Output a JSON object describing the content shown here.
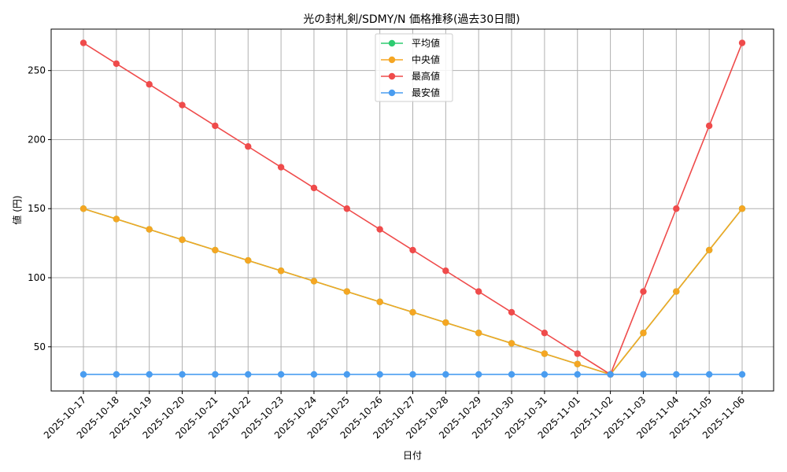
{
  "chart_data": {
    "type": "line",
    "title": "光の封札剣/SDMY/N 価格推移(過去30日間)",
    "xlabel": "日付",
    "ylabel": "値 (円)",
    "ylim": [
      18,
      280
    ],
    "yticks": [
      50,
      100,
      150,
      200,
      250
    ],
    "grid": true,
    "legend_position": "top-center",
    "categories": [
      "2025-10-17",
      "2025-10-18",
      "2025-10-19",
      "2025-10-20",
      "2025-10-21",
      "2025-10-22",
      "2025-10-23",
      "2025-10-24",
      "2025-10-25",
      "2025-10-26",
      "2025-10-27",
      "2025-10-28",
      "2025-10-29",
      "2025-10-30",
      "2025-10-31",
      "2025-11-01",
      "2025-11-02",
      "2025-11-03",
      "2025-11-04",
      "2025-11-05",
      "2025-11-06"
    ],
    "series": [
      {
        "name": "平均値",
        "color": "#2ecc71",
        "values": [
          150,
          142.5,
          135,
          127.5,
          120,
          112.5,
          105,
          97.5,
          90,
          82.5,
          75,
          67.5,
          60,
          52.5,
          45,
          37.5,
          30,
          60,
          90,
          120,
          150
        ]
      },
      {
        "name": "中央値",
        "color": "#f5a623",
        "values": [
          150,
          142.5,
          135,
          127.5,
          120,
          112.5,
          105,
          97.5,
          90,
          82.5,
          75,
          67.5,
          60,
          52.5,
          45,
          37.5,
          30,
          60,
          90,
          120,
          150
        ]
      },
      {
        "name": "最高値",
        "color": "#ef4b4b",
        "values": [
          270,
          255,
          240,
          225,
          210,
          195,
          180,
          165,
          150,
          135,
          120,
          105,
          90,
          75,
          60,
          45,
          30,
          90,
          150,
          210,
          270
        ]
      },
      {
        "name": "最安値",
        "color": "#4a9df0",
        "values": [
          30,
          30,
          30,
          30,
          30,
          30,
          30,
          30,
          30,
          30,
          30,
          30,
          30,
          30,
          30,
          30,
          30,
          30,
          30,
          30,
          30
        ]
      }
    ]
  }
}
